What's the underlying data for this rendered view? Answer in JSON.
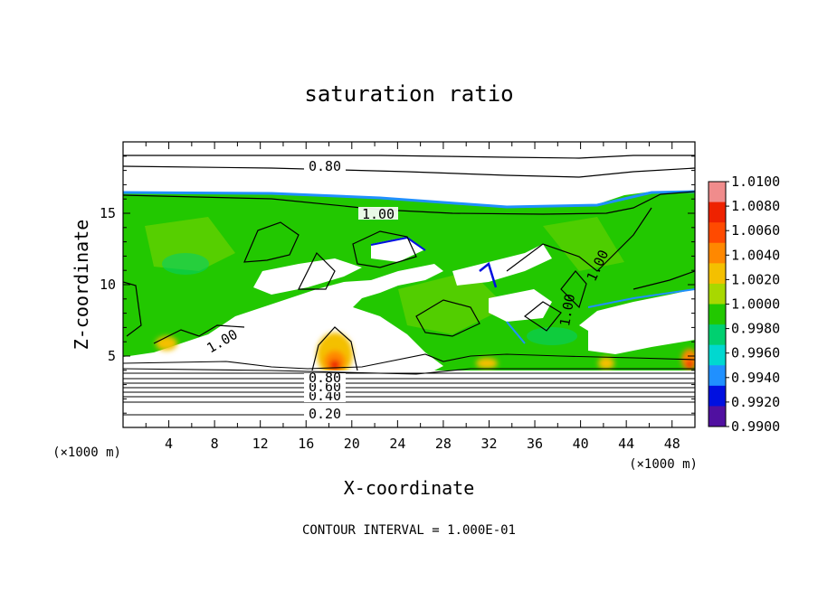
{
  "chart_data": {
    "type": "heatmap",
    "title": "saturation ratio",
    "xlabel": "X-coordinate",
    "ylabel": "Z-coordinate",
    "x_unit": "(×1000 m)",
    "z_unit": "(×1000 m)",
    "footer": "CONTOUR INTERVAL = 1.000E-01",
    "xlim": [
      0,
      50
    ],
    "ylim": [
      0,
      20
    ],
    "x_ticks": [
      "4",
      "8",
      "12",
      "16",
      "20",
      "24",
      "28",
      "32",
      "36",
      "40",
      "44",
      "48"
    ],
    "y_ticks": [
      "5",
      "10",
      "15"
    ],
    "colorbar": {
      "labels": [
        "1.0100",
        "1.0080",
        "1.0060",
        "1.0040",
        "1.0020",
        "1.0000",
        "0.9980",
        "0.9960",
        "0.9940",
        "0.9920",
        "0.9900"
      ],
      "colors": [
        "#f08c8c",
        "#ee2200",
        "#ff4a00",
        "#ff8800",
        "#f4c000",
        "#a8d800",
        "#22c800",
        "#00d070",
        "#00d8d0",
        "#2090ff",
        "#0010e0",
        "#5010a0"
      ]
    },
    "contour_labels": [
      "0.80",
      "1.00",
      "1.00",
      "1.00",
      "1.00",
      "0.20",
      "0.40",
      "0.60",
      "0.80"
    ],
    "contours": [
      {
        "label": "0.80",
        "z": 18.3
      },
      {
        "label": "0.20",
        "z": 0.9
      },
      {
        "label": "0.40",
        "z": 2.0
      },
      {
        "label": "0.60",
        "z": 2.8
      },
      {
        "label": "0.80",
        "z": 3.5
      }
    ]
  }
}
